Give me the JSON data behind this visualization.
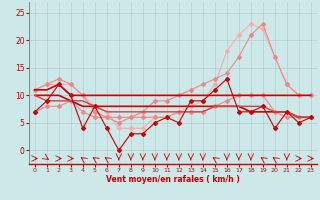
{
  "x": [
    0,
    1,
    2,
    3,
    4,
    5,
    6,
    7,
    8,
    9,
    10,
    11,
    12,
    13,
    14,
    15,
    16,
    17,
    18,
    19,
    20,
    21,
    22,
    23
  ],
  "lines": [
    {
      "y": [
        11,
        11,
        12,
        10,
        10,
        10,
        10,
        10,
        10,
        10,
        10,
        10,
        10,
        10,
        10,
        10,
        10,
        10,
        10,
        10,
        10,
        10,
        10,
        10
      ],
      "color": "#cc0000",
      "lw": 1.2,
      "marker": null,
      "zorder": 5
    },
    {
      "y": [
        7,
        9,
        12,
        10,
        4,
        8,
        4,
        0,
        3,
        3,
        5,
        6,
        5,
        9,
        9,
        11,
        13,
        7,
        7,
        8,
        4,
        7,
        5,
        6
      ],
      "color": "#cc0000",
      "lw": 0.8,
      "marker": "D",
      "markersize": 2.0,
      "zorder": 6
    },
    {
      "y": [
        10,
        10,
        10,
        9,
        8,
        8,
        8,
        8,
        8,
        8,
        8,
        8,
        8,
        8,
        8,
        8,
        8,
        8,
        7,
        7,
        7,
        7,
        6,
        6
      ],
      "color": "#cc0000",
      "lw": 1.2,
      "marker": null,
      "zorder": 4
    },
    {
      "y": [
        11,
        12,
        13,
        12,
        10,
        7,
        6,
        6,
        6,
        7,
        9,
        9,
        10,
        11,
        12,
        13,
        14,
        17,
        21,
        23,
        17,
        12,
        10,
        10
      ],
      "color": "#ee8888",
      "lw": 0.8,
      "marker": "D",
      "markersize": 2.0,
      "zorder": 3
    },
    {
      "y": [
        11,
        12,
        12,
        12,
        10,
        8,
        7,
        4,
        4,
        4,
        6,
        6,
        7,
        8,
        9,
        12,
        18,
        21,
        23,
        22,
        17,
        12,
        10,
        10
      ],
      "color": "#ffaaaa",
      "lw": 0.8,
      "marker": "D",
      "markersize": 2.0,
      "zorder": 2
    },
    {
      "y": [
        7,
        8,
        8,
        9,
        7,
        6,
        6,
        5,
        6,
        6,
        6,
        6,
        7,
        7,
        7,
        8,
        9,
        10,
        10,
        10,
        7,
        6,
        6,
        6
      ],
      "color": "#ee8888",
      "lw": 0.8,
      "marker": "D",
      "markersize": 2.0,
      "zorder": 3
    },
    {
      "y": [
        10,
        9,
        9,
        9,
        9,
        8,
        7,
        7,
        7,
        7,
        7,
        7,
        7,
        7,
        7,
        8,
        8,
        8,
        8,
        8,
        7,
        7,
        6,
        6
      ],
      "color": "#cc4444",
      "lw": 1.0,
      "marker": null,
      "zorder": 4
    }
  ],
  "wind_dirs": [
    0,
    1,
    0,
    0,
    -1,
    -1,
    -1,
    2,
    2,
    2,
    2,
    2,
    2,
    2,
    2,
    -1,
    2,
    2,
    2,
    -1,
    -1,
    2,
    0,
    0
  ],
  "xlabel": "Vent moyen/en rafales ( km/h )",
  "xlim": [
    -0.5,
    23.5
  ],
  "ylim": [
    -2.5,
    27
  ],
  "yticks": [
    0,
    5,
    10,
    15,
    20,
    25
  ],
  "xticks": [
    0,
    1,
    2,
    3,
    4,
    5,
    6,
    7,
    8,
    9,
    10,
    11,
    12,
    13,
    14,
    15,
    16,
    17,
    18,
    19,
    20,
    21,
    22,
    23
  ],
  "bg_color": "#cce8e8",
  "grid_color": "#aaaaaa",
  "text_color": "#cc0000",
  "xlabel_color": "#cc0000"
}
